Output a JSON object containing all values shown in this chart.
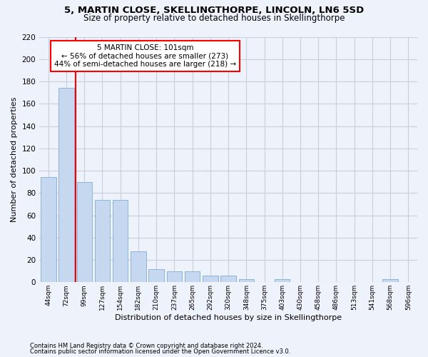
{
  "title1": "5, MARTIN CLOSE, SKELLINGTHORPE, LINCOLN, LN6 5SD",
  "title2": "Size of property relative to detached houses in Skellingthorpe",
  "xlabel": "Distribution of detached houses by size in Skellingthorpe",
  "ylabel": "Number of detached properties",
  "footnote1": "Contains HM Land Registry data © Crown copyright and database right 2024.",
  "footnote2": "Contains public sector information licensed under the Open Government Licence v3.0.",
  "bar_labels": [
    "44sqm",
    "72sqm",
    "99sqm",
    "127sqm",
    "154sqm",
    "182sqm",
    "210sqm",
    "237sqm",
    "265sqm",
    "292sqm",
    "320sqm",
    "348sqm",
    "375sqm",
    "403sqm",
    "430sqm",
    "458sqm",
    "486sqm",
    "513sqm",
    "541sqm",
    "568sqm",
    "596sqm"
  ],
  "bar_values": [
    94,
    174,
    90,
    74,
    74,
    28,
    12,
    10,
    10,
    6,
    6,
    3,
    0,
    3,
    0,
    0,
    0,
    0,
    0,
    3,
    0
  ],
  "bar_color": "#c5d8f0",
  "bar_edgecolor": "#8ab4d8",
  "grid_color": "#c8d0e0",
  "annotation_text": "5 MARTIN CLOSE: 101sqm\n← 56% of detached houses are smaller (273)\n44% of semi-detached houses are larger (218) →",
  "annotation_box_color": "white",
  "annotation_box_edgecolor": "red",
  "ylim": [
    0,
    220
  ],
  "yticks": [
    0,
    20,
    40,
    60,
    80,
    100,
    120,
    140,
    160,
    180,
    200,
    220
  ],
  "background_color": "#eef2fa"
}
